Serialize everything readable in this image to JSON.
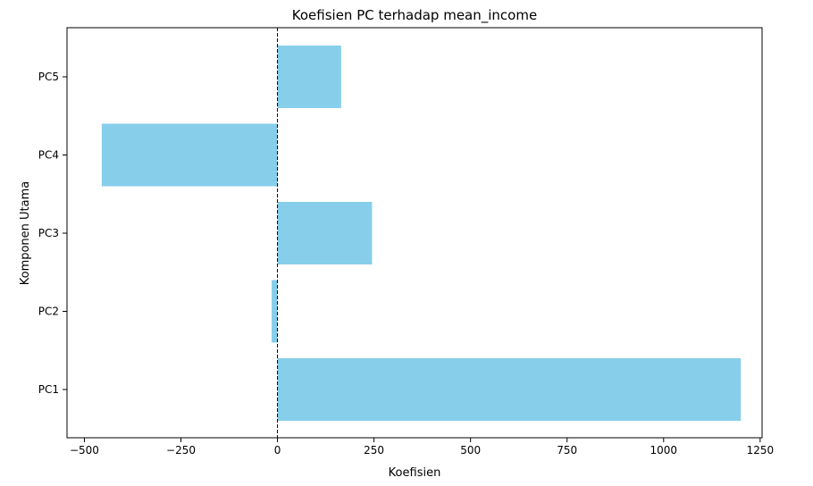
{
  "chart_data": {
    "type": "bar",
    "orientation": "horizontal",
    "title": "Koefisien PC terhadap mean_income",
    "xlabel": "Koefisien",
    "ylabel": "Komponen Utama",
    "categories": [
      "PC1",
      "PC2",
      "PC3",
      "PC4",
      "PC5"
    ],
    "values": [
      1200,
      -15,
      245,
      -455,
      165
    ],
    "xlim": [
      -545,
      1255
    ],
    "xticks": [
      -500,
      -250,
      0,
      250,
      500,
      750,
      1000,
      1250
    ],
    "xtick_labels": [
      "−500",
      "−250",
      "0",
      "250",
      "500",
      "750",
      "1000",
      "1250"
    ],
    "bar_color": "#87CEEB",
    "zero_line": {
      "value": 0,
      "style": "dashed",
      "color": "#000000"
    },
    "grid": false,
    "legend": "none"
  }
}
